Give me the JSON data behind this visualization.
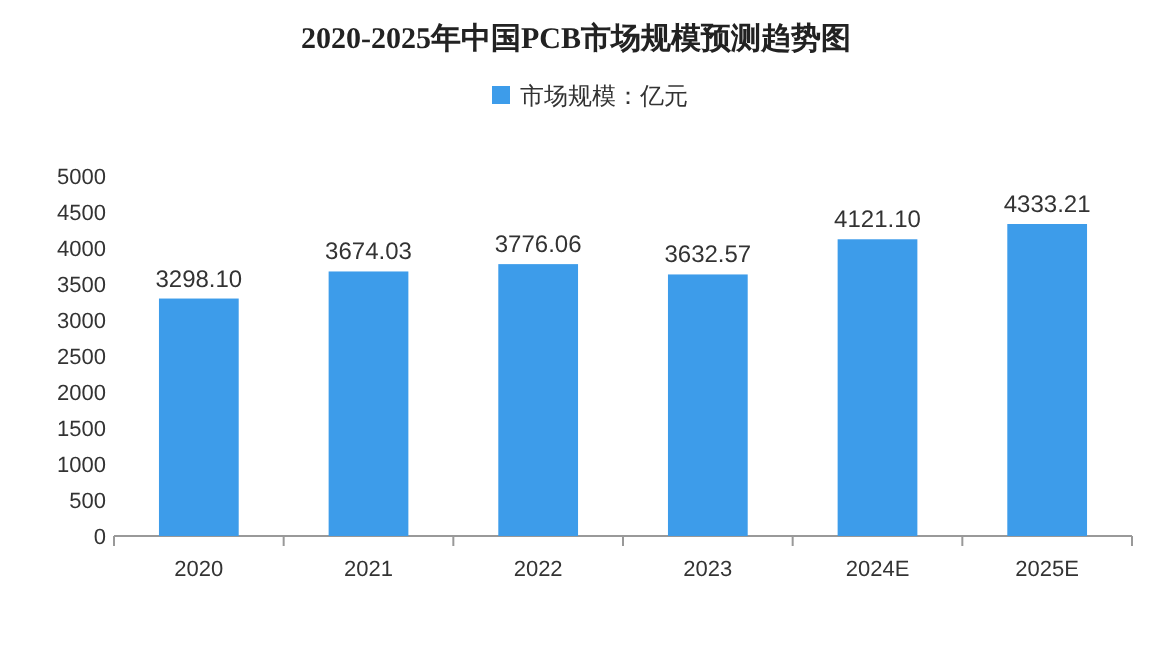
{
  "chart_data": {
    "type": "bar",
    "title": "2020-2025年中国PCB市场规模预测趋势图",
    "categories": [
      "2020",
      "2021",
      "2022",
      "2023",
      "2024E",
      "2025E"
    ],
    "series": [
      {
        "name": "市场规模：亿元",
        "color": "#3d9cea",
        "values": [
          3298.1,
          3674.03,
          3776.06,
          3632.57,
          4121.1,
          4333.21
        ]
      }
    ],
    "value_labels": [
      "3298.10",
      "3674.03",
      "3776.06",
      "3632.57",
      "4121.10",
      "4333.21"
    ],
    "ylim": [
      0,
      5000
    ],
    "yticks": [
      0,
      500,
      1000,
      1500,
      2000,
      2500,
      3000,
      3500,
      4000,
      4500,
      5000
    ],
    "legend": "top",
    "grid": false
  }
}
